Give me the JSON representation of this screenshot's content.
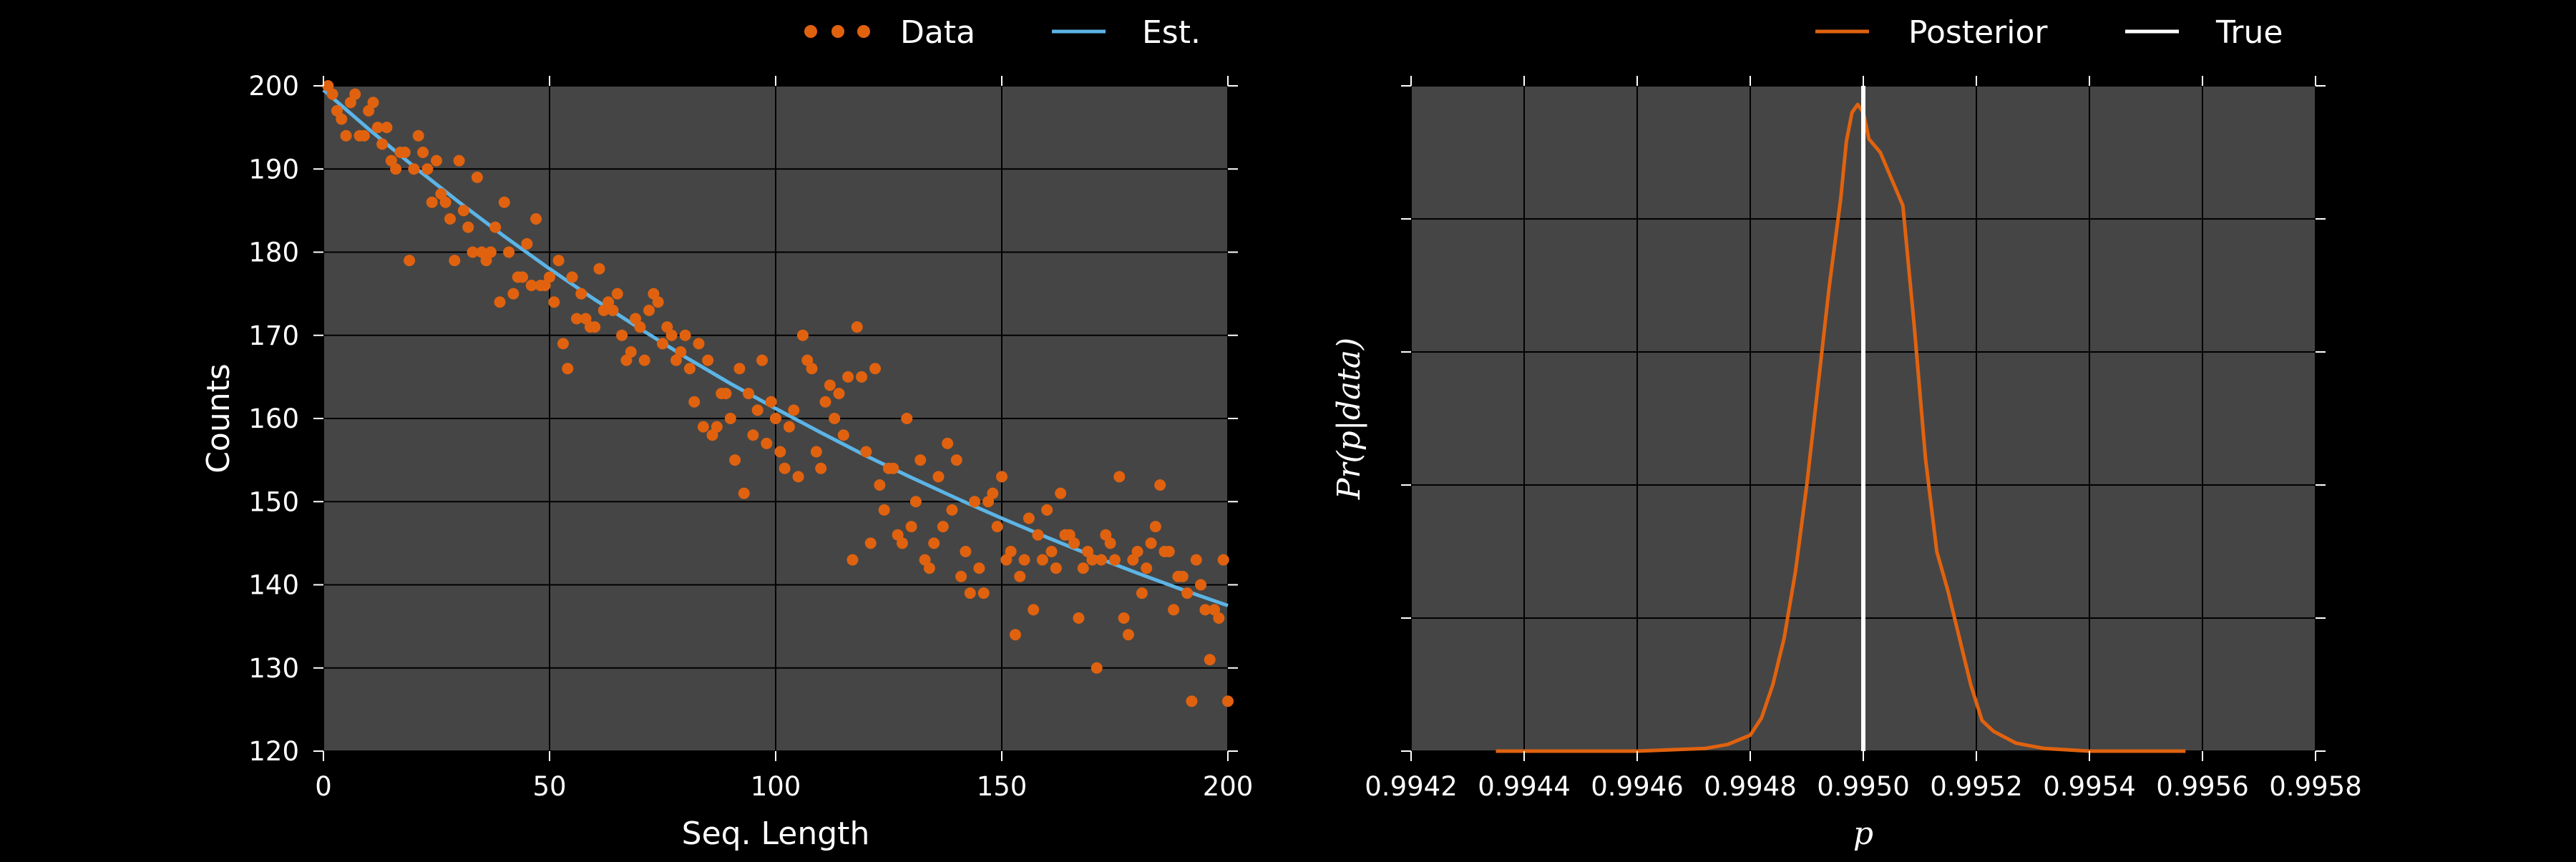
{
  "colors": {
    "background": "#000000",
    "plot_bg": "#454545",
    "grid": "#000000",
    "data": "#e0620f",
    "estimate": "#5cb4e6",
    "posterior": "#e0620f",
    "true": "#ffffff"
  },
  "chart_data": [
    {
      "type": "scatter",
      "xlabel": "Seq. Length",
      "ylabel": "Counts",
      "xlim": [
        0,
        200
      ],
      "ylim": [
        120,
        200
      ],
      "xticks": [
        0,
        50,
        100,
        150,
        200
      ],
      "yticks": [
        120,
        130,
        140,
        150,
        160,
        170,
        180,
        190,
        200
      ],
      "xtick_labels": [
        "0",
        "50",
        "100",
        "150",
        "200"
      ],
      "ytick_labels": [
        "120",
        "130",
        "140",
        "150",
        "160",
        "170",
        "180",
        "190",
        "200"
      ],
      "grid": true,
      "legend": {
        "placement": "top",
        "entries": [
          "Data",
          "Est."
        ]
      },
      "series": [
        {
          "name": "Data",
          "kind": "scatter",
          "x": [
            1,
            2,
            3,
            4,
            5,
            6,
            7,
            8,
            9,
            10,
            11,
            12,
            13,
            14,
            15,
            16,
            17,
            18,
            19,
            20,
            21,
            22,
            23,
            24,
            25,
            26,
            27,
            28,
            29,
            30,
            31,
            32,
            33,
            34,
            35,
            36,
            37,
            38,
            39,
            40,
            41,
            42,
            43,
            44,
            45,
            46,
            47,
            48,
            49,
            50,
            51,
            52,
            53,
            54,
            55,
            56,
            57,
            58,
            59,
            60,
            61,
            62,
            63,
            64,
            65,
            66,
            67,
            68,
            69,
            70,
            71,
            72,
            73,
            74,
            75,
            76,
            77,
            78,
            79,
            80,
            81,
            82,
            83,
            84,
            85,
            86,
            87,
            88,
            89,
            90,
            91,
            92,
            93,
            94,
            95,
            96,
            97,
            98,
            99,
            100,
            101,
            102,
            103,
            104,
            105,
            106,
            107,
            108,
            109,
            110,
            111,
            112,
            113,
            114,
            115,
            116,
            117,
            118,
            119,
            120,
            121,
            122,
            123,
            124,
            125,
            126,
            127,
            128,
            129,
            130,
            131,
            132,
            133,
            134,
            135,
            136,
            137,
            138,
            139,
            140,
            141,
            142,
            143,
            144,
            145,
            146,
            147,
            148,
            149,
            150,
            151,
            152,
            153,
            154,
            155,
            156,
            157,
            158,
            159,
            160,
            161,
            162,
            163,
            164,
            165,
            166,
            167,
            168,
            169,
            170,
            171,
            172,
            173,
            174,
            175,
            176,
            177,
            178,
            179,
            180,
            181,
            182,
            183,
            184,
            185,
            186,
            187,
            188,
            189,
            190,
            191,
            192,
            193,
            194,
            195,
            196,
            197,
            198,
            199,
            200
          ],
          "y": [
            200,
            199,
            197,
            196,
            194,
            198,
            199,
            194,
            194,
            197,
            198,
            195,
            193,
            195,
            191,
            190,
            192,
            192,
            179,
            190,
            194,
            192,
            190,
            186,
            191,
            187,
            186,
            184,
            179,
            191,
            185,
            183,
            180,
            189,
            180,
            179,
            180,
            183,
            174,
            186,
            180,
            175,
            177,
            177,
            181,
            176,
            184,
            176,
            176,
            177,
            174,
            179,
            169,
            166,
            177,
            172,
            175,
            172,
            171,
            171,
            178,
            173,
            174,
            173,
            175,
            170,
            167,
            168,
            172,
            171,
            167,
            173,
            175,
            174,
            169,
            171,
            170,
            167,
            168,
            170,
            166,
            162,
            169,
            159,
            167,
            158,
            159,
            163,
            163,
            160,
            155,
            166,
            151,
            163,
            158,
            161,
            167,
            157,
            162,
            160,
            156,
            154,
            159,
            161,
            153,
            170,
            167,
            166,
            156,
            154,
            162,
            164,
            160,
            163,
            158,
            165,
            143,
            171,
            165,
            156,
            145,
            166,
            152,
            149,
            154,
            154,
            146,
            145,
            160,
            147,
            150,
            155,
            143,
            142,
            145,
            153,
            147,
            157,
            149,
            155,
            141,
            144,
            139,
            150,
            142,
            139,
            150,
            151,
            147,
            153,
            143,
            144,
            134,
            141,
            143,
            148,
            137,
            146,
            143,
            149,
            144,
            142,
            151,
            146,
            146,
            145,
            136,
            142,
            144,
            143,
            130,
            143,
            146,
            145,
            143,
            153,
            136,
            134,
            143,
            144,
            139,
            142,
            145,
            147,
            152,
            144,
            144,
            137,
            141,
            141,
            139,
            126,
            143,
            140,
            137,
            131,
            137,
            136,
            143,
            126
          ]
        },
        {
          "name": "Est.",
          "kind": "line",
          "x": [
            0,
            10,
            20,
            30,
            40,
            50,
            60,
            70,
            80,
            90,
            100,
            110,
            120,
            130,
            140,
            150,
            160,
            170,
            180,
            190,
            200
          ],
          "y": [
            199.5,
            194.8,
            190.3,
            186.0,
            181.9,
            178.0,
            174.3,
            170.8,
            167.4,
            164.2,
            161.2,
            158.3,
            155.5,
            152.9,
            150.4,
            148.0,
            145.7,
            143.5,
            141.4,
            139.4,
            137.5
          ]
        }
      ]
    },
    {
      "type": "line",
      "xlabel": "p",
      "ylabel": "Pr(p|data)",
      "xlim": [
        0.9942,
        0.9958
      ],
      "xticks": [
        0.9942,
        0.9944,
        0.9946,
        0.9948,
        0.995,
        0.9952,
        0.9954,
        0.9956,
        0.9958
      ],
      "xtick_labels": [
        "0.9942",
        "0.9944",
        "0.9946",
        "0.9948",
        "0.9950",
        "0.9952",
        "0.9954",
        "0.9956",
        "0.9958"
      ],
      "ylim": [
        0,
        5
      ],
      "yticks": [
        0,
        1,
        2,
        3,
        4,
        5
      ],
      "grid": true,
      "legend": {
        "placement": "top",
        "entries": [
          "Posterior",
          "True"
        ]
      },
      "series": [
        {
          "name": "Posterior",
          "kind": "line",
          "x": [
            0.99435,
            0.9946,
            0.99472,
            0.99476,
            0.9948,
            0.99482,
            0.99484,
            0.99486,
            0.99488,
            0.9949,
            0.99492,
            0.99494,
            0.99496,
            0.99497,
            0.99498,
            0.99499,
            0.995,
            0.99501,
            0.99503,
            0.99505,
            0.99507,
            0.99509,
            0.99511,
            0.99513,
            0.99515,
            0.99517,
            0.99519,
            0.99521,
            0.99523,
            0.99527,
            0.99532,
            0.9954,
            0.9955,
            0.99557
          ],
          "y": [
            0.0,
            0.0,
            0.02,
            0.05,
            0.12,
            0.25,
            0.5,
            0.85,
            1.35,
            2.0,
            2.75,
            3.5,
            4.15,
            4.58,
            4.8,
            4.86,
            4.8,
            4.6,
            4.5,
            4.3,
            4.1,
            3.2,
            2.2,
            1.5,
            1.2,
            0.85,
            0.5,
            0.23,
            0.15,
            0.06,
            0.02,
            0.0,
            0.0,
            0.0
          ]
        },
        {
          "name": "True",
          "kind": "vline",
          "x": 0.995
        }
      ]
    }
  ]
}
